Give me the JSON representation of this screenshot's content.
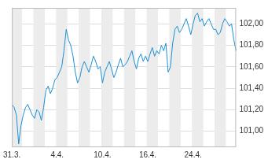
{
  "chart_data": {
    "type": "line",
    "categories": [
      "31.3.",
      null,
      null,
      null,
      null,
      null,
      null,
      null,
      null,
      null,
      null,
      null,
      null,
      null,
      null,
      null,
      null,
      null,
      null,
      null,
      "4.4.",
      null,
      null,
      null,
      null,
      null,
      null,
      null,
      null,
      null,
      null,
      null,
      null,
      null,
      null,
      null,
      null,
      null,
      null,
      null,
      "10.4.",
      null,
      null,
      null,
      null,
      null,
      null,
      null,
      null,
      null,
      null,
      null,
      null,
      null,
      null,
      null,
      null,
      null,
      null,
      null,
      "16.4.",
      null,
      null,
      null,
      null,
      null,
      null,
      null,
      null,
      null,
      null,
      null,
      null,
      null,
      null,
      null,
      null,
      null,
      null,
      null,
      "24.4.",
      null,
      null,
      null,
      null,
      null,
      null,
      null,
      null,
      null,
      null,
      null,
      null,
      null,
      null,
      null,
      null,
      null,
      null,
      null
    ],
    "values": [
      101.25,
      101.22,
      101.15,
      100.88,
      101.05,
      101.15,
      101.22,
      101.25,
      101.2,
      101.15,
      101.12,
      101.2,
      101.18,
      101.1,
      101.22,
      101.38,
      101.42,
      101.35,
      101.4,
      101.48,
      101.5,
      101.55,
      101.6,
      101.75,
      101.95,
      101.85,
      101.8,
      101.7,
      101.55,
      101.45,
      101.5,
      101.6,
      101.65,
      101.6,
      101.55,
      101.62,
      101.7,
      101.65,
      101.58,
      101.6,
      101.45,
      101.55,
      101.6,
      101.65,
      101.58,
      101.5,
      101.55,
      101.62,
      101.68,
      101.6,
      101.62,
      101.65,
      101.7,
      101.75,
      101.65,
      101.58,
      101.68,
      101.72,
      101.65,
      101.7,
      101.65,
      101.72,
      101.78,
      101.7,
      101.75,
      101.72,
      101.8,
      101.75,
      101.82,
      101.55,
      101.6,
      101.82,
      101.95,
      101.98,
      101.92,
      101.95,
      102.0,
      102.05,
      101.98,
      101.9,
      102.0,
      102.08,
      102.1,
      102.02,
      102.05,
      101.98,
      102.02,
      102.05,
      102.0,
      101.95,
      101.95,
      101.9,
      101.92,
      102.0,
      102.05,
      102.02,
      101.98,
      102.0,
      101.85,
      101.75
    ],
    "color": "#1a8fd6",
    "ylim": [
      100.85,
      102.15
    ],
    "yticks": [
      {
        "value": 101.0,
        "label": "101,00"
      },
      {
        "value": 101.2,
        "label": "101,20"
      },
      {
        "value": 101.4,
        "label": "101,40"
      },
      {
        "value": 101.6,
        "label": "101,60"
      },
      {
        "value": 101.8,
        "label": "101,80"
      },
      {
        "value": 102.0,
        "label": "102,00"
      }
    ],
    "grid": true
  }
}
